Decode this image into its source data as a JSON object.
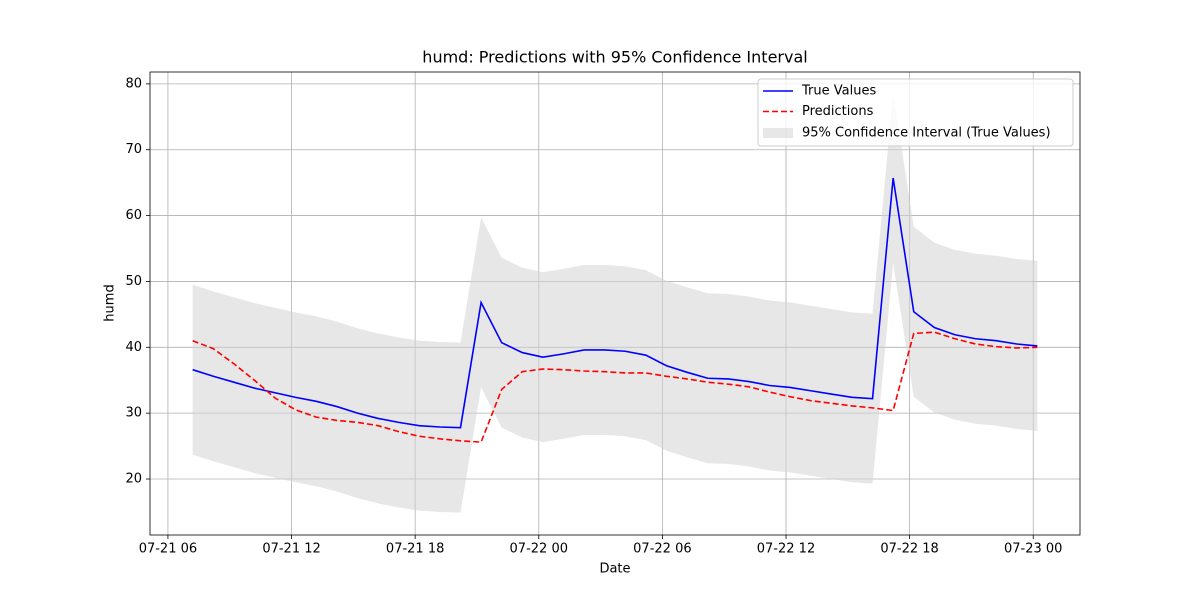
{
  "chart_data": {
    "type": "line",
    "title": "humd: Predictions with 95% Confidence Interval",
    "xlabel": "Date",
    "ylabel": "humd",
    "x": [
      7.2,
      8.2,
      9.2,
      10.2,
      11.2,
      12.2,
      13.2,
      14.2,
      15.2,
      16.2,
      17.2,
      18.2,
      19.2,
      20.2,
      21.2,
      22.2,
      23.2,
      24.2,
      25.2,
      26.2,
      27.2,
      28.2,
      29.2,
      30.2,
      31.2,
      32.2,
      33.2,
      34.2,
      35.2,
      36.2,
      37.2,
      38.2,
      39.2,
      40.2,
      41.2,
      42.2,
      43.2,
      44.2,
      45.2,
      46.2,
      47.2,
      48.2
    ],
    "xlim": [
      5.13,
      50.27
    ],
    "xticks": [
      {
        "value": 6,
        "label": "07-21 06"
      },
      {
        "value": 12,
        "label": "07-21 12"
      },
      {
        "value": 18,
        "label": "07-21 18"
      },
      {
        "value": 24,
        "label": "07-22 00"
      },
      {
        "value": 30,
        "label": "07-22 06"
      },
      {
        "value": 36,
        "label": "07-22 12"
      },
      {
        "value": 42,
        "label": "07-22 18"
      },
      {
        "value": 48,
        "label": "07-23 00"
      }
    ],
    "ylim": [
      11.5,
      81.8
    ],
    "yticks": [
      20,
      30,
      40,
      50,
      60,
      70,
      80
    ],
    "grid": true,
    "legend": "upper right",
    "series": [
      {
        "name": "True Values",
        "color": "#0000ff",
        "style": "solid",
        "values": [
          36.6,
          35.6,
          34.7,
          33.8,
          33.1,
          32.4,
          31.8,
          31.0,
          30.0,
          29.2,
          28.6,
          28.1,
          27.9,
          27.8,
          46.8,
          40.7,
          39.2,
          38.5,
          39.0,
          39.6,
          39.6,
          39.4,
          38.8,
          37.2,
          36.2,
          35.3,
          35.2,
          34.8,
          34.2,
          33.9,
          33.4,
          32.9,
          32.4,
          32.2,
          65.7,
          45.4,
          43.0,
          41.9,
          41.3,
          41.0,
          40.5,
          40.2
        ]
      },
      {
        "name": "Predictions",
        "color": "#ff0000",
        "style": "dashed",
        "values": [
          41.0,
          39.8,
          37.5,
          35.0,
          32.3,
          30.5,
          29.4,
          28.9,
          28.6,
          28.1,
          27.2,
          26.5,
          26.1,
          25.8,
          25.6,
          33.6,
          36.3,
          36.7,
          36.6,
          36.4,
          36.3,
          36.1,
          36.1,
          35.6,
          35.2,
          34.7,
          34.4,
          34.0,
          33.2,
          32.5,
          31.9,
          31.5,
          31.1,
          30.8,
          30.4,
          42.1,
          42.3,
          41.3,
          40.5,
          40.1,
          39.9,
          40.0
        ]
      }
    ],
    "band": {
      "name": "95% Confidence Interval (True Values)",
      "color": "#d3d3d3",
      "lower": [
        23.7,
        22.7,
        21.8,
        20.9,
        20.2,
        19.5,
        18.9,
        18.1,
        17.1,
        16.3,
        15.7,
        15.2,
        15.0,
        14.9,
        33.9,
        27.8,
        26.3,
        25.6,
        26.1,
        26.7,
        26.7,
        26.5,
        25.9,
        24.3,
        23.3,
        22.4,
        22.3,
        21.9,
        21.3,
        21.0,
        20.5,
        20.0,
        19.5,
        19.3,
        52.8,
        32.5,
        30.1,
        29.0,
        28.4,
        28.1,
        27.6,
        27.3
      ],
      "upper": [
        49.5,
        48.5,
        47.6,
        46.7,
        46.0,
        45.3,
        44.7,
        43.9,
        42.9,
        42.1,
        41.5,
        41.0,
        40.8,
        40.7,
        59.7,
        53.6,
        52.1,
        51.4,
        51.9,
        52.5,
        52.5,
        52.3,
        51.7,
        50.1,
        49.1,
        48.2,
        48.1,
        47.7,
        47.1,
        46.8,
        46.3,
        45.8,
        45.3,
        45.1,
        78.6,
        58.3,
        55.9,
        54.8,
        54.2,
        53.9,
        53.4,
        53.1
      ]
    }
  }
}
